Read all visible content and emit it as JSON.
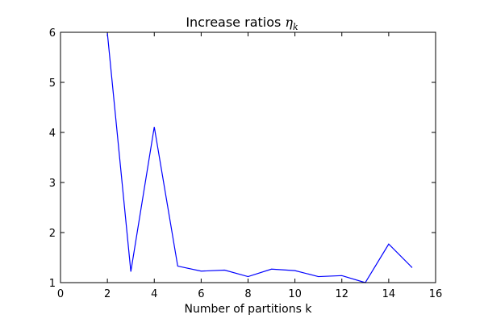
{
  "chart_data": {
    "type": "line",
    "title": {
      "text": "Increase ratios ",
      "symbol": "η",
      "subscript": "k"
    },
    "xlabel": "Number of partitions k",
    "ylabel": "",
    "xlim": [
      0,
      16
    ],
    "ylim": [
      1,
      6
    ],
    "xticks": [
      "0",
      "2",
      "4",
      "6",
      "8",
      "10",
      "12",
      "14",
      "16"
    ],
    "yticks": [
      "1",
      "2",
      "3",
      "4",
      "5",
      "6"
    ],
    "grid": false,
    "series": [
      {
        "color": "#0000ff",
        "x": [
          2,
          3,
          4,
          5,
          6,
          7,
          8,
          9,
          10,
          11,
          12,
          13,
          14,
          15
        ],
        "y": [
          5.98,
          1.22,
          4.11,
          1.33,
          1.23,
          1.25,
          1.12,
          1.27,
          1.24,
          1.12,
          1.14,
          1.0,
          1.77,
          1.3
        ]
      }
    ]
  }
}
